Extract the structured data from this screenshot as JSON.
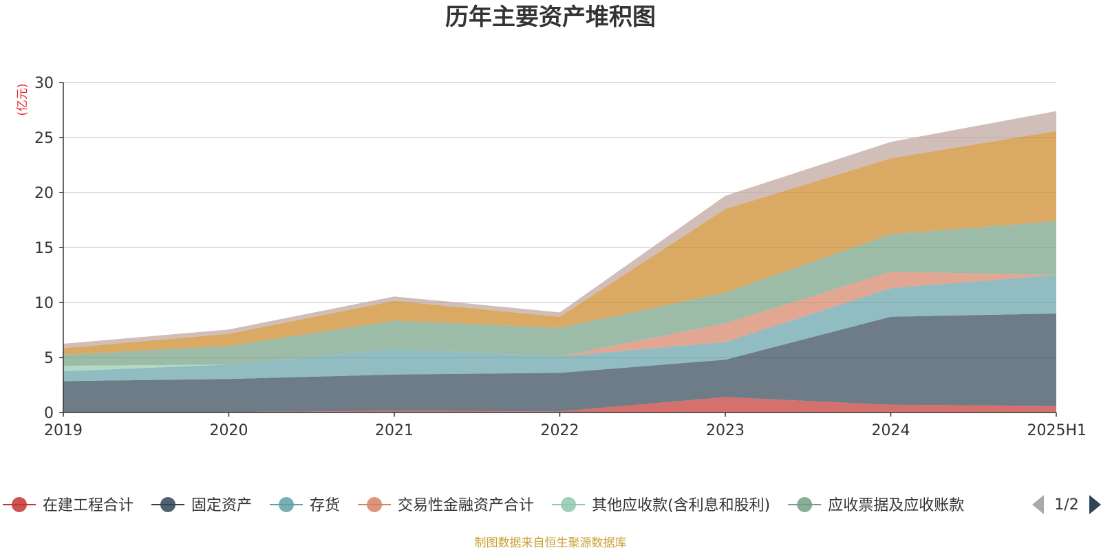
{
  "page": {
    "title": "历年主要资产堆积图",
    "unit_label": "(亿元)",
    "source_note": "制图数据来自恒生聚源数据库",
    "legend_page_indicator": "1/2"
  },
  "chart_data": {
    "type": "area",
    "stacked": true,
    "title": "历年主要资产堆积图",
    "ylabel": "(亿元)",
    "xlabel": "",
    "categories": [
      "2019",
      "2020",
      "2021",
      "2022",
      "2023",
      "2024",
      "2025H1"
    ],
    "ylim": [
      0,
      30
    ],
    "yticks": [
      0,
      5,
      10,
      15,
      20,
      25,
      30
    ],
    "grid": true,
    "legend_position": "bottom",
    "legend_visible_entries": 6,
    "series": [
      {
        "name": "在建工程合计",
        "color": "#c23531",
        "values": [
          0.05,
          0.05,
          0.15,
          0.1,
          1.4,
          0.7,
          0.6
        ]
      },
      {
        "name": "固定资产",
        "color": "#2f4554",
        "values": [
          2.8,
          3.0,
          3.3,
          3.5,
          3.4,
          8.0,
          8.4
        ]
      },
      {
        "name": "存货",
        "color": "#61a0a8",
        "values": [
          0.9,
          1.3,
          2.3,
          1.5,
          1.6,
          2.6,
          3.5
        ]
      },
      {
        "name": "交易性金融资产合计",
        "color": "#d48265",
        "values": [
          0.0,
          0.0,
          0.0,
          0.0,
          1.7,
          1.5,
          0.0
        ]
      },
      {
        "name": "其他应收款(含利息和股利)",
        "color": "#91c7ae",
        "values": [
          0.5,
          0.0,
          0.0,
          0.0,
          0.0,
          0.0,
          0.0
        ]
      },
      {
        "name": "应收票据及应收账款",
        "color": "#749f83",
        "values": [
          1.0,
          1.7,
          2.6,
          2.6,
          2.8,
          3.4,
          4.9
        ]
      },
      {
        "name": "",
        "color": "#ca8622",
        "values": [
          0.6,
          1.1,
          1.8,
          1.0,
          7.6,
          6.9,
          8.2
        ]
      },
      {
        "name": "",
        "color": "#bda29a",
        "values": [
          0.4,
          0.4,
          0.4,
          0.4,
          1.2,
          1.5,
          1.8
        ]
      }
    ]
  }
}
